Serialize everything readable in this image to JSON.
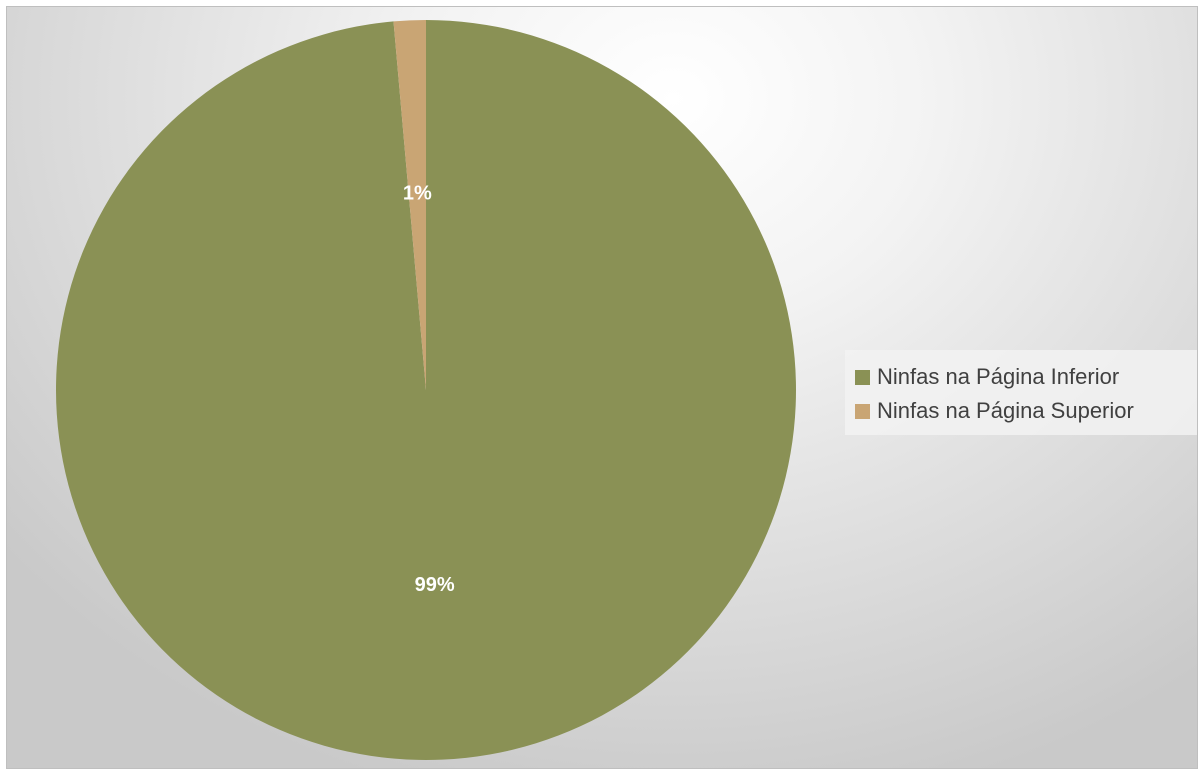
{
  "chart_data": {
    "type": "pie",
    "title": "",
    "categories": [
      "Ninfas na Página Inferior",
      "Ninfas na Página Superior"
    ],
    "values": [
      98.6,
      1.4
    ],
    "data_labels": [
      "99%",
      "1%"
    ],
    "colors": [
      "#8a9155",
      "#c9a574"
    ],
    "start_angle_deg": 0,
    "direction": "clockwise",
    "legend_position": "right"
  },
  "legend": {
    "items": [
      {
        "label": "Ninfas na Página Inferior",
        "color": "#8a9155"
      },
      {
        "label": "Ninfas na Página Superior",
        "color": "#c9a574"
      }
    ]
  }
}
